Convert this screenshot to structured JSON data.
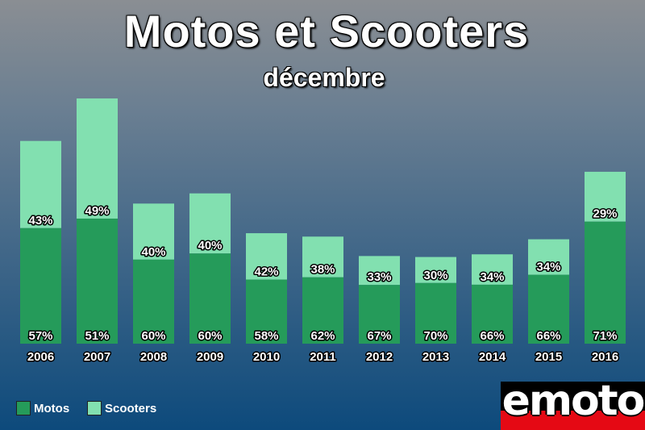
{
  "chart_data": {
    "type": "bar",
    "stacked": true,
    "title": "Motos et Scooters",
    "subtitle": "décembre",
    "categories": [
      "2006",
      "2007",
      "2008",
      "2009",
      "2010",
      "2011",
      "2012",
      "2013",
      "2014",
      "2015",
      "2016"
    ],
    "totals": [
      835,
      1010,
      577,
      619,
      455,
      441,
      361,
      357,
      368,
      430,
      708
    ],
    "series": [
      {
        "name": "Motos",
        "percent_labels": [
          "57%",
          "51%",
          "60%",
          "60%",
          "58%",
          "62%",
          "67%",
          "70%",
          "66%",
          "66%",
          "71%"
        ],
        "color": "#259b5a"
      },
      {
        "name": "Scooters",
        "percent_labels": [
          "43%",
          "49%",
          "40%",
          "40%",
          "42%",
          "38%",
          "33%",
          "30%",
          "34%",
          "34%",
          "29%"
        ],
        "color": "#82e0b0"
      }
    ],
    "motos_share": [
      0.57,
      0.51,
      0.6,
      0.6,
      0.58,
      0.62,
      0.67,
      0.7,
      0.66,
      0.66,
      0.71
    ],
    "ylim": [
      0,
      1040
    ],
    "grid": false,
    "legend_position": "bottom-left"
  },
  "logo": {
    "text": "emoto"
  },
  "colors": {
    "text": "#ffffff",
    "label_outline": "#000000"
  }
}
